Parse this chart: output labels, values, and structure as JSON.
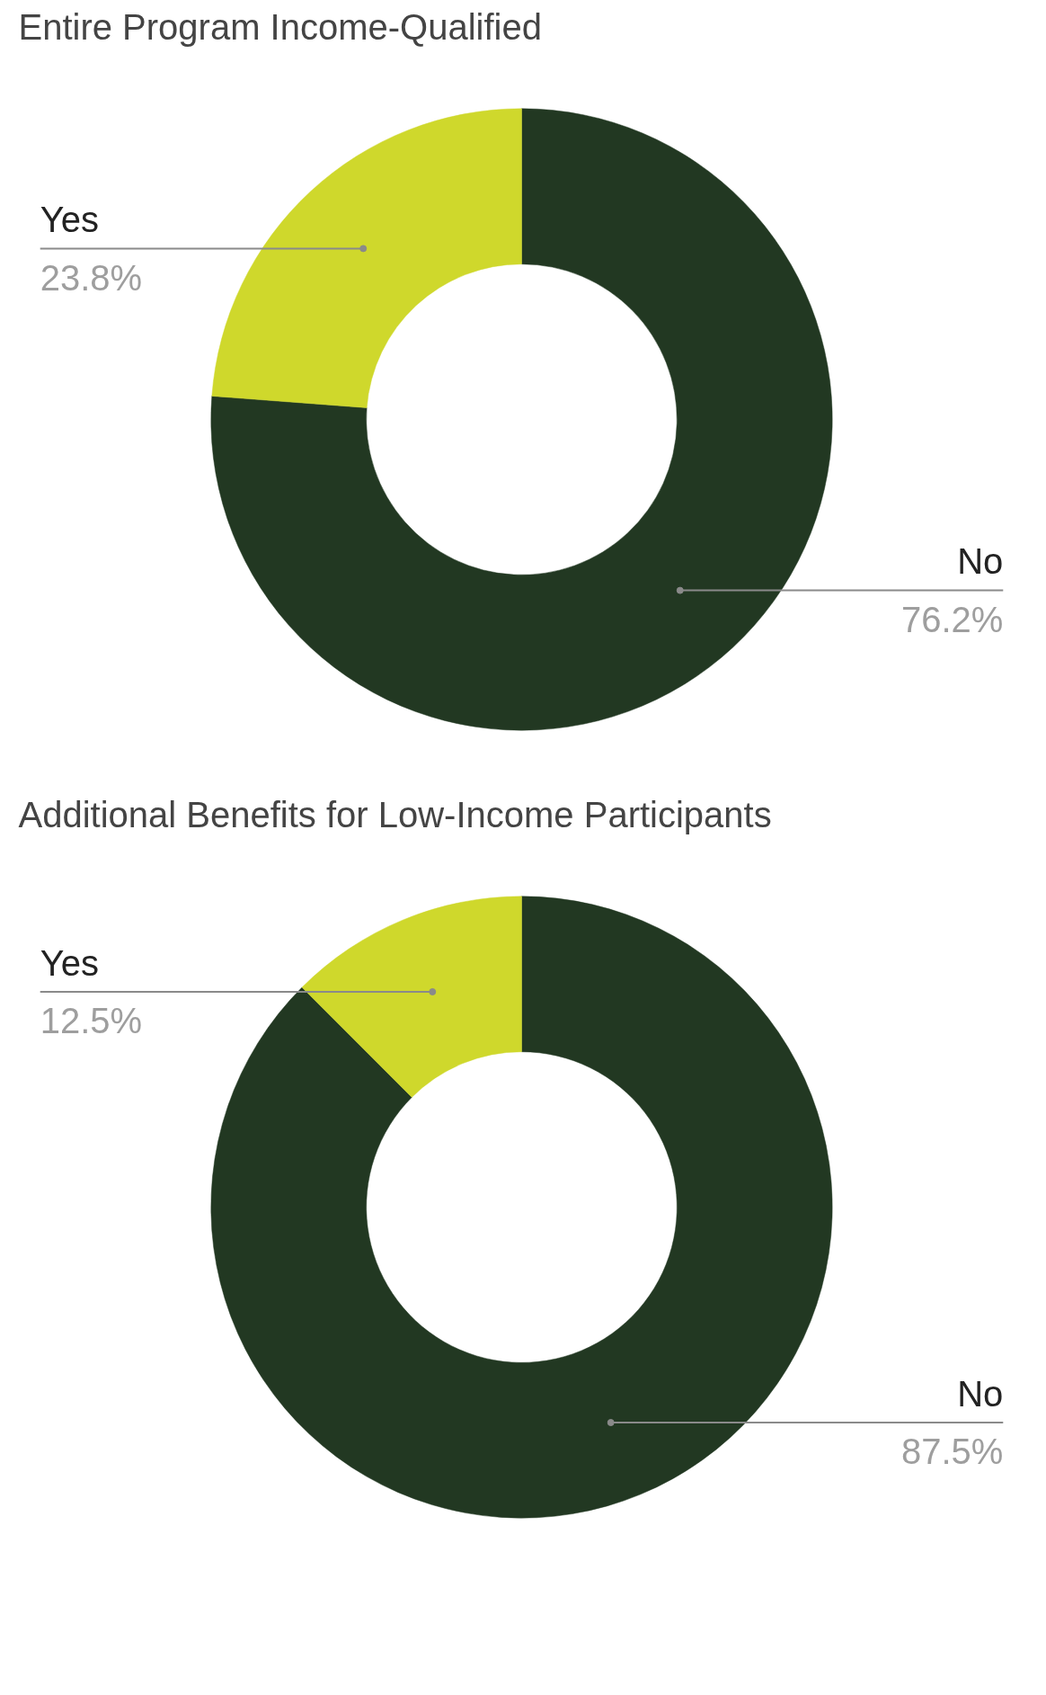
{
  "chart_data": [
    {
      "type": "donut",
      "title": "Entire Program Income-Qualified",
      "categories": [
        "No",
        "Yes"
      ],
      "values": [
        76.2,
        23.8
      ],
      "colors": [
        "#223822",
        "#cfd82c"
      ],
      "value_labels": [
        "76.2%",
        "23.8%"
      ]
    },
    {
      "type": "donut",
      "title": "Additional Benefits for Low-Income Participants",
      "categories": [
        "No",
        "Yes"
      ],
      "values": [
        87.5,
        12.5
      ],
      "colors": [
        "#223822",
        "#cfd82c"
      ],
      "value_labels": [
        "87.5%",
        "12.5%"
      ]
    }
  ]
}
